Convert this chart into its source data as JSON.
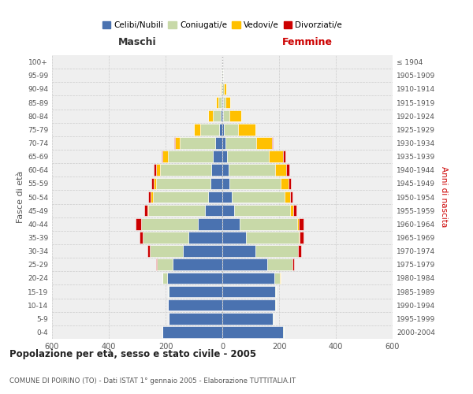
{
  "age_groups": [
    "0-4",
    "5-9",
    "10-14",
    "15-19",
    "20-24",
    "25-29",
    "30-34",
    "35-39",
    "40-44",
    "45-49",
    "50-54",
    "55-59",
    "60-64",
    "65-69",
    "70-74",
    "75-79",
    "80-84",
    "85-89",
    "90-94",
    "95-99",
    "100+"
  ],
  "birth_years": [
    "2000-2004",
    "1995-1999",
    "1990-1994",
    "1985-1989",
    "1980-1984",
    "1975-1979",
    "1970-1974",
    "1965-1969",
    "1960-1964",
    "1955-1959",
    "1950-1954",
    "1945-1949",
    "1940-1944",
    "1935-1939",
    "1930-1934",
    "1925-1929",
    "1920-1924",
    "1915-1919",
    "1910-1914",
    "1905-1909",
    "≤ 1904"
  ],
  "male": {
    "celibi": [
      210,
      188,
      192,
      188,
      195,
      175,
      140,
      120,
      85,
      60,
      50,
      42,
      38,
      32,
      25,
      12,
      5,
      4,
      2,
      1,
      0
    ],
    "coniugati": [
      1,
      1,
      1,
      3,
      15,
      55,
      115,
      160,
      200,
      200,
      195,
      190,
      182,
      160,
      125,
      65,
      28,
      10,
      3,
      1,
      0
    ],
    "vedovi": [
      0,
      0,
      0,
      0,
      1,
      1,
      1,
      1,
      2,
      4,
      8,
      10,
      12,
      18,
      18,
      22,
      16,
      8,
      3,
      1,
      0
    ],
    "divorziati": [
      0,
      0,
      0,
      0,
      1,
      3,
      8,
      12,
      18,
      10,
      8,
      8,
      10,
      5,
      1,
      1,
      0,
      0,
      0,
      0,
      0
    ]
  },
  "female": {
    "nubili": [
      215,
      178,
      185,
      185,
      182,
      158,
      118,
      82,
      60,
      42,
      32,
      25,
      22,
      18,
      12,
      6,
      3,
      2,
      1,
      1,
      0
    ],
    "coniugate": [
      1,
      2,
      3,
      5,
      22,
      88,
      148,
      188,
      205,
      198,
      188,
      180,
      165,
      145,
      108,
      50,
      22,
      8,
      4,
      1,
      0
    ],
    "vedove": [
      0,
      0,
      0,
      0,
      1,
      2,
      2,
      2,
      4,
      10,
      18,
      28,
      38,
      50,
      55,
      60,
      42,
      18,
      8,
      2,
      0
    ],
    "divorziate": [
      0,
      0,
      0,
      0,
      1,
      5,
      10,
      15,
      18,
      12,
      8,
      10,
      10,
      8,
      4,
      2,
      1,
      0,
      0,
      0,
      0
    ]
  },
  "colors": {
    "celibi_nubili": "#4a72b0",
    "coniugati": "#c8d9a8",
    "vedovi": "#ffc000",
    "divorziati": "#cc0000"
  },
  "title": "Popolazione per età, sesso e stato civile - 2005",
  "subtitle": "COMUNE DI POIRINO (TO) - Dati ISTAT 1° gennaio 2005 - Elaborazione TUTTITALIA.IT",
  "ylabel_left": "Fasce di età",
  "ylabel_right": "Anni di nascita",
  "xlabel_maschi": "Maschi",
  "xlabel_femmine": "Femmine",
  "xlim": 600,
  "background_color": "#efefef",
  "grid_color": "#cccccc"
}
